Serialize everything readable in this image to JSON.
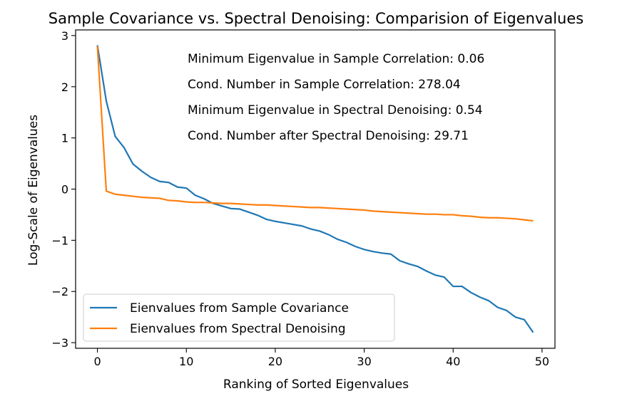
{
  "chart_data": {
    "type": "line",
    "title": "Sample Covariance vs. Spectral Denoising: Comparision of Eigenvalues",
    "xlabel": "Ranking of Sorted Eigenvalues",
    "ylabel": "Log-Scale of Eigenvalues",
    "xlim": [
      -2.45,
      51.45
    ],
    "ylim": [
      -3.11,
      3.11
    ],
    "xticks": [
      0,
      10,
      20,
      30,
      40,
      50
    ],
    "yticks": [
      3,
      2,
      1,
      0,
      -1,
      -2,
      -3
    ],
    "tick_labels_x": [
      "0",
      "10",
      "20",
      "30",
      "40",
      "50"
    ],
    "tick_labels_y": [
      "3",
      "2",
      "1",
      "0",
      "−1",
      "−2",
      "−3"
    ],
    "grid": false,
    "legend_position": "lower-left",
    "x": [
      0,
      1,
      2,
      3,
      4,
      5,
      6,
      7,
      8,
      9,
      10,
      11,
      12,
      13,
      14,
      15,
      16,
      17,
      18,
      19,
      20,
      21,
      22,
      23,
      24,
      25,
      26,
      27,
      28,
      29,
      30,
      31,
      32,
      33,
      34,
      35,
      36,
      37,
      38,
      39,
      40,
      41,
      42,
      43,
      44,
      45,
      46,
      47,
      48,
      49
    ],
    "series": [
      {
        "name": "Eienvalues from Sample Covariance",
        "color": "#1f77b4",
        "values": [
          2.81,
          1.72,
          1.03,
          0.81,
          0.49,
          0.35,
          0.23,
          0.15,
          0.13,
          0.04,
          0.02,
          -0.12,
          -0.19,
          -0.28,
          -0.33,
          -0.38,
          -0.39,
          -0.45,
          -0.51,
          -0.59,
          -0.63,
          -0.66,
          -0.69,
          -0.72,
          -0.78,
          -0.82,
          -0.89,
          -0.98,
          -1.04,
          -1.12,
          -1.18,
          -1.22,
          -1.25,
          -1.27,
          -1.4,
          -1.46,
          -1.51,
          -1.6,
          -1.68,
          -1.72,
          -1.9,
          -1.9,
          -2.02,
          -2.11,
          -2.18,
          -2.31,
          -2.37,
          -2.5,
          -2.55,
          -2.8
        ]
      },
      {
        "name": "Eienvalues from Spectral Denoising",
        "color": "#ff7f0e",
        "values": [
          2.79,
          -0.04,
          -0.1,
          -0.12,
          -0.14,
          -0.16,
          -0.17,
          -0.18,
          -0.22,
          -0.23,
          -0.25,
          -0.26,
          -0.26,
          -0.27,
          -0.28,
          -0.28,
          -0.29,
          -0.3,
          -0.31,
          -0.31,
          -0.32,
          -0.33,
          -0.34,
          -0.35,
          -0.36,
          -0.36,
          -0.37,
          -0.38,
          -0.39,
          -0.4,
          -0.41,
          -0.43,
          -0.44,
          -0.45,
          -0.46,
          -0.47,
          -0.48,
          -0.49,
          -0.49,
          -0.5,
          -0.5,
          -0.52,
          -0.53,
          -0.55,
          -0.56,
          -0.56,
          -0.57,
          -0.58,
          -0.6,
          -0.62
        ]
      }
    ],
    "annotations": [
      "Minimum Eigenvalue in Sample Correlation: 0.06",
      "Cond. Number in Sample Correlation: 278.04",
      "Minimum Eigenvalue in Spectral Denoising: 0.54",
      "Cond. Number after Spectral Denoising: 29.71"
    ]
  }
}
